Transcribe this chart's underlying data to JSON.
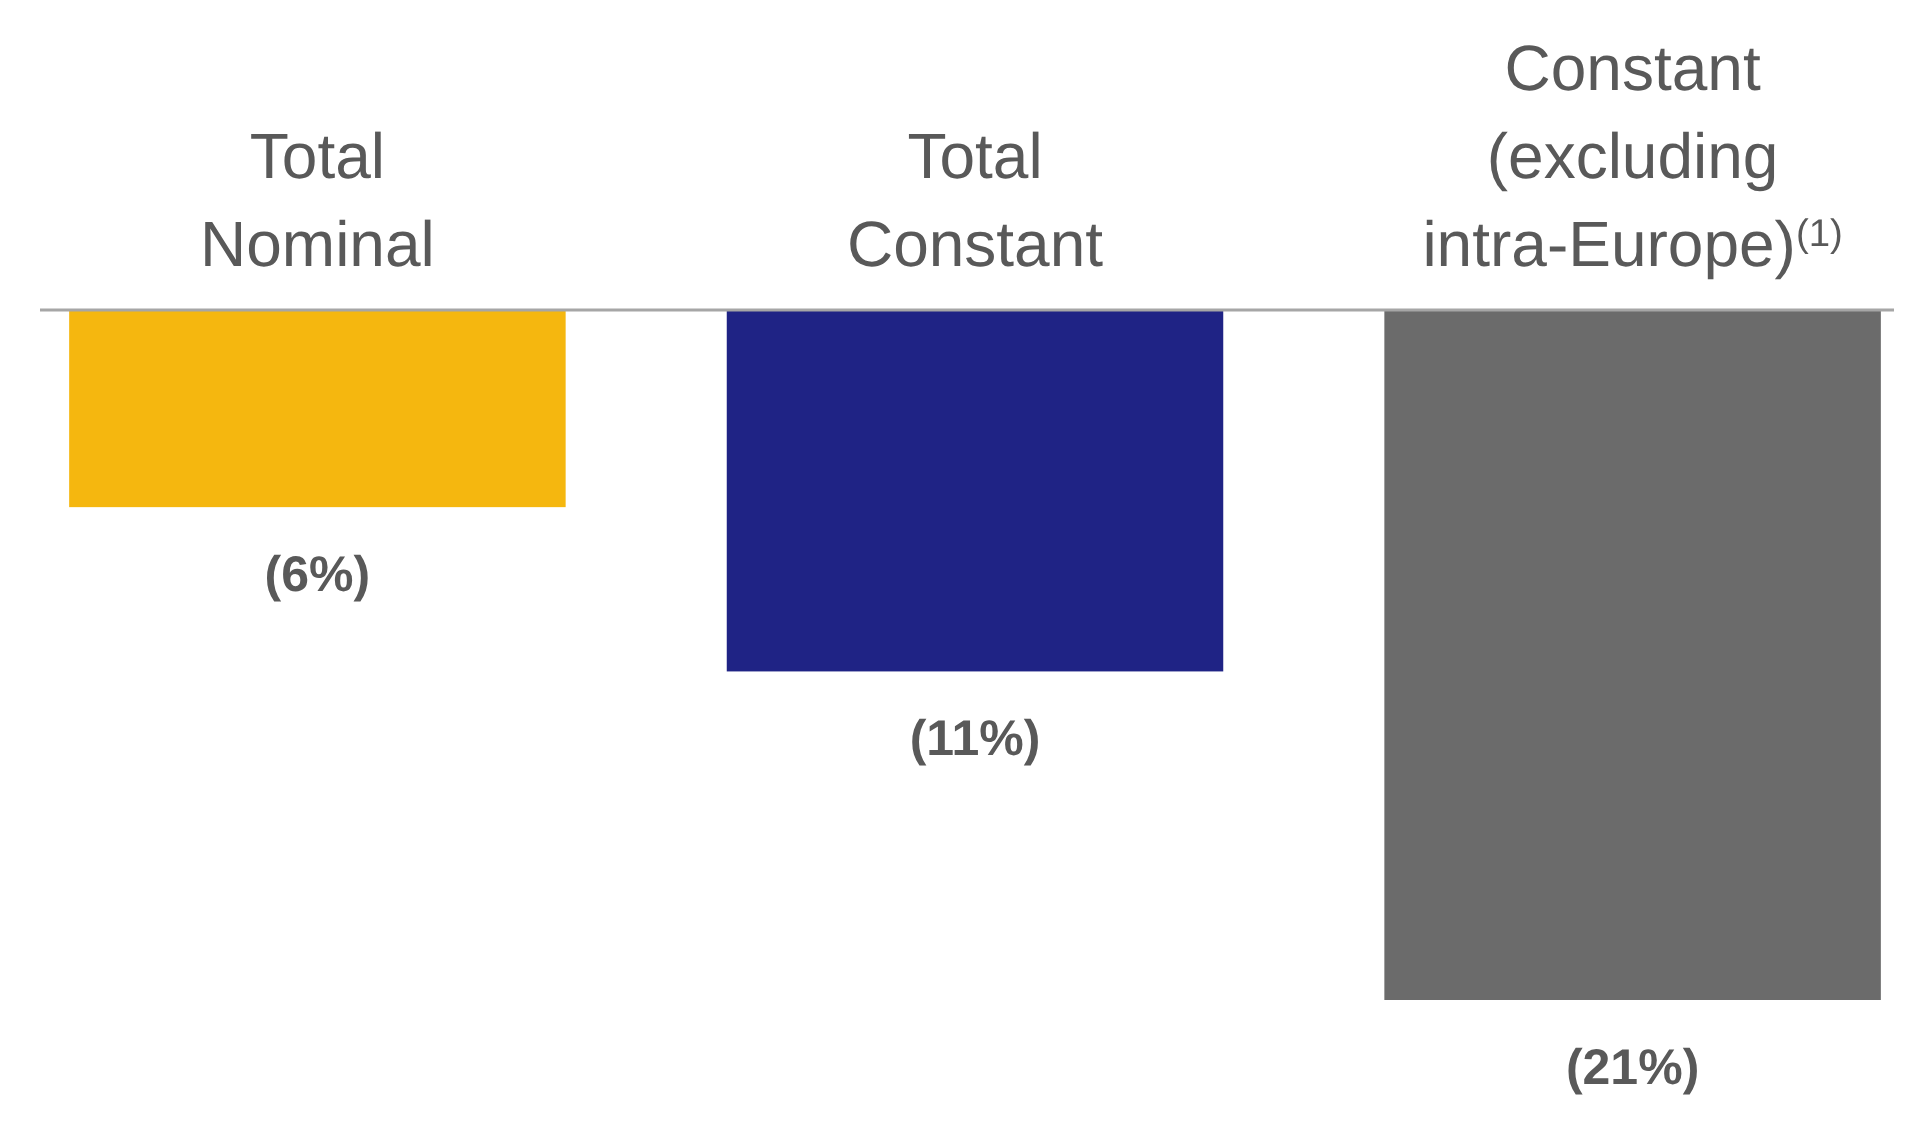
{
  "chart_data": {
    "type": "bar",
    "categories": [
      "Total Nominal",
      "Total Constant",
      "Constant (excluding intra-Europe)$^{(1)}$"
    ],
    "values": [
      -6,
      -11,
      -21
    ],
    "colors": [
      "#f5b70f",
      "#1f2385",
      "#6b6b6b"
    ],
    "value_labels": [
      "(6%)",
      "(11%)",
      "(21%)"
    ]
  }
}
